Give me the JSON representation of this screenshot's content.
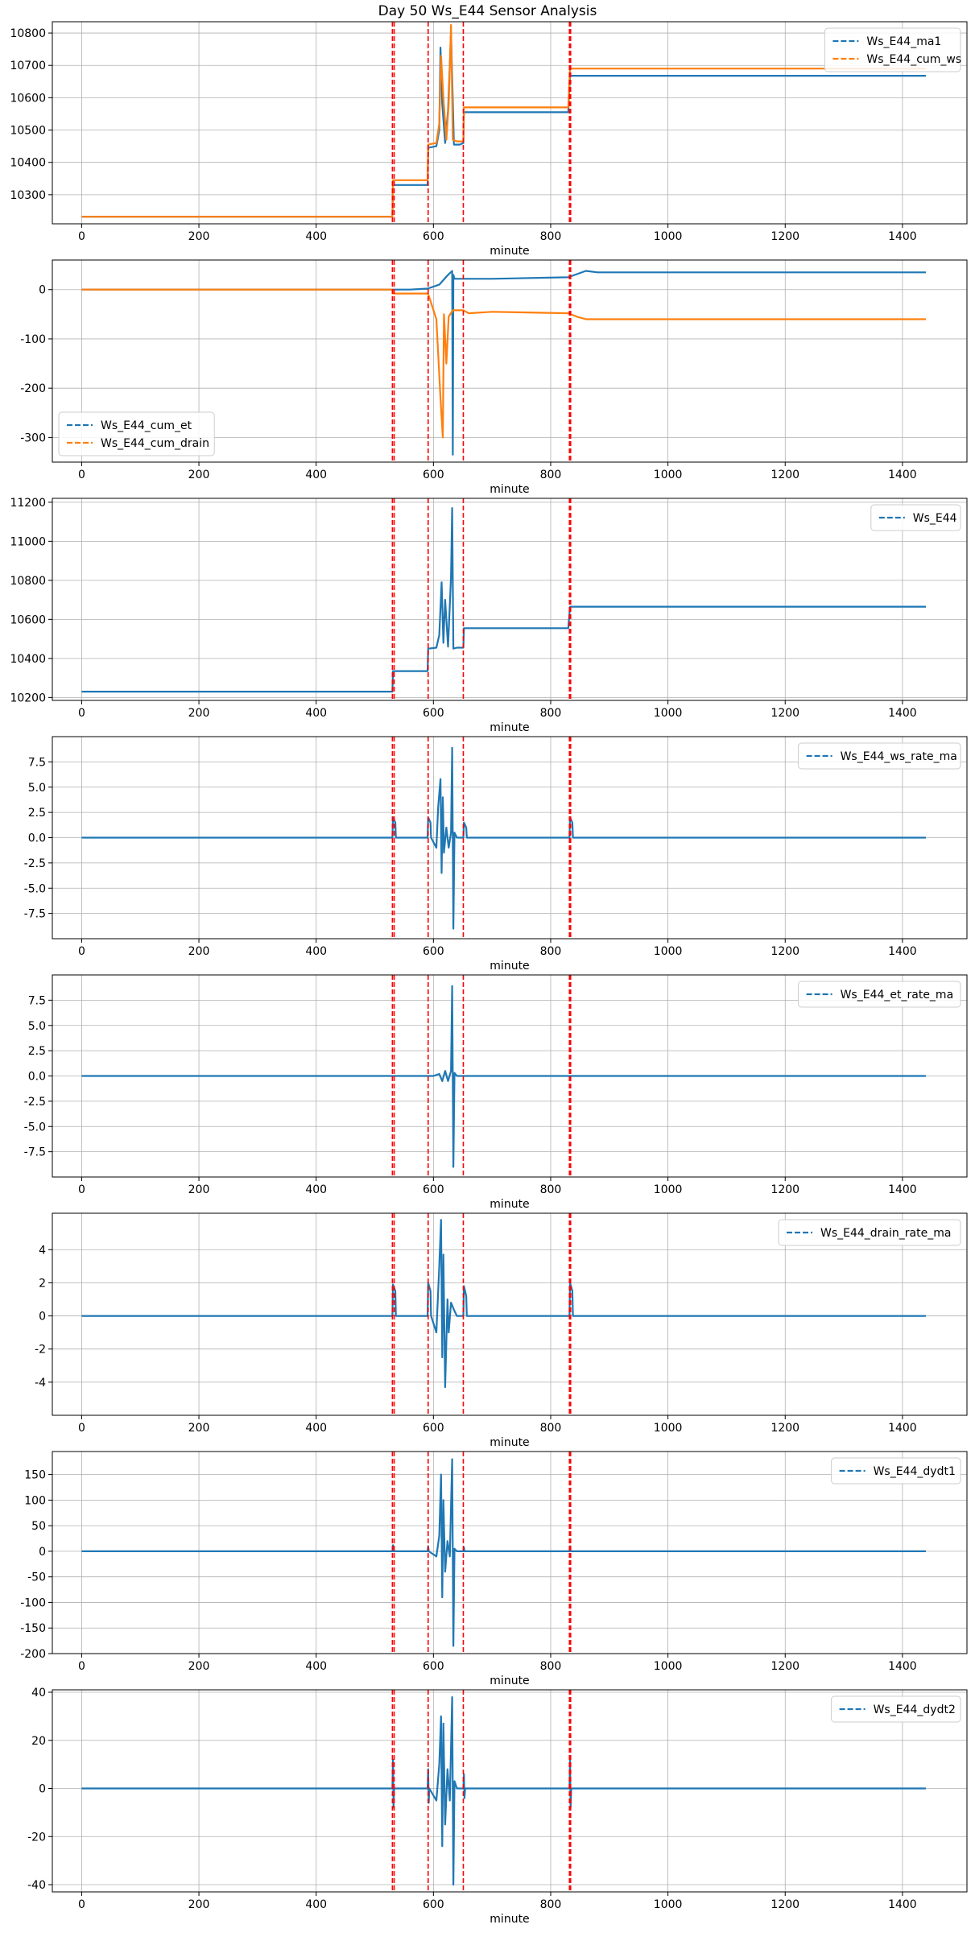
{
  "title": "Day 50 Ws_E44 Sensor Analysis",
  "colors": {
    "blue": "#1f77b4",
    "orange": "#ff7f0e",
    "event": "#ff0000",
    "grid": "#b0b0b0"
  },
  "event_lines_x": [
    530,
    533,
    591,
    651,
    832,
    834
  ],
  "chart_data": [
    {
      "type": "line",
      "xlabel": "minute",
      "xlim": [
        -50,
        1510
      ],
      "ylim": [
        10210,
        10835
      ],
      "yticks": [
        10300,
        10400,
        10500,
        10600,
        10700,
        10800
      ],
      "xticks": [
        0,
        200,
        400,
        600,
        800,
        1000,
        1200,
        1400
      ],
      "grid": true,
      "legend": "top-right",
      "series": [
        {
          "name": "Ws_E44_ma1",
          "color": "#1f77b4",
          "x": [
            0,
            530,
            531,
            590,
            591,
            605,
            610,
            612,
            615,
            620,
            625,
            630,
            635,
            645,
            651,
            652,
            830,
            833,
            1440
          ],
          "y": [
            10232,
            10232,
            10330,
            10330,
            10445,
            10450,
            10500,
            10755,
            10580,
            10460,
            10560,
            10800,
            10455,
            10455,
            10460,
            10555,
            10555,
            10668,
            10668
          ]
        },
        {
          "name": "Ws_E44_cum_ws",
          "color": "#ff7f0e",
          "x": [
            0,
            530,
            531,
            590,
            591,
            605,
            610,
            613,
            617,
            622,
            626,
            630,
            633,
            640,
            651,
            652,
            830,
            833,
            1440
          ],
          "y": [
            10232,
            10232,
            10345,
            10345,
            10455,
            10460,
            10520,
            10730,
            10600,
            10470,
            10580,
            10825,
            10470,
            10465,
            10465,
            10570,
            10570,
            10690,
            10690
          ]
        }
      ]
    },
    {
      "type": "line",
      "xlabel": "minute",
      "xlim": [
        -50,
        1510
      ],
      "ylim": [
        -350,
        60
      ],
      "yticks": [
        -300,
        -200,
        -100,
        0
      ],
      "xticks": [
        0,
        200,
        400,
        600,
        800,
        1000,
        1200,
        1400
      ],
      "grid": true,
      "legend": "bottom-left",
      "series": [
        {
          "name": "Ws_E44_cum_et",
          "color": "#1f77b4",
          "x": [
            0,
            530,
            560,
            590,
            610,
            625,
            632,
            633,
            634,
            636,
            640,
            651,
            700,
            830,
            860,
            880,
            1440
          ],
          "y": [
            0,
            0,
            0,
            2,
            10,
            30,
            38,
            -335,
            30,
            22,
            22,
            22,
            22,
            25,
            38,
            35,
            35
          ]
        },
        {
          "name": "Ws_E44_cum_drain",
          "color": "#ff7f0e",
          "x": [
            0,
            530,
            531,
            590,
            592,
            605,
            612,
            616,
            618,
            622,
            626,
            633,
            640,
            651,
            660,
            700,
            830,
            845,
            860,
            1440
          ],
          "y": [
            0,
            0,
            -8,
            -8,
            -12,
            -60,
            -220,
            -300,
            -50,
            -150,
            -55,
            -42,
            -42,
            -42,
            -48,
            -45,
            -48,
            -55,
            -60,
            -60
          ]
        }
      ]
    },
    {
      "type": "line",
      "xlabel": "minute",
      "xlim": [
        -50,
        1510
      ],
      "ylim": [
        10185,
        11220
      ],
      "yticks": [
        10200,
        10400,
        10600,
        10800,
        11000,
        11200
      ],
      "xticks": [
        0,
        200,
        400,
        600,
        800,
        1000,
        1200,
        1400
      ],
      "grid": true,
      "legend": "top-right",
      "series": [
        {
          "name": "Ws_E44",
          "color": "#1f77b4",
          "x": [
            0,
            530,
            531,
            590,
            591,
            605,
            610,
            614,
            617,
            620,
            625,
            630,
            632,
            634,
            640,
            651,
            652,
            830,
            833,
            1440
          ],
          "y": [
            10230,
            10230,
            10335,
            10335,
            10450,
            10455,
            10520,
            10790,
            10480,
            10700,
            10460,
            10820,
            11170,
            10450,
            10455,
            10455,
            10555,
            10555,
            10665,
            10665
          ]
        }
      ]
    },
    {
      "type": "line",
      "xlabel": "minute",
      "xlim": [
        -50,
        1510
      ],
      "ylim": [
        -10,
        10
      ],
      "yticks": [
        -7.5,
        -5.0,
        -2.5,
        0.0,
        2.5,
        5.0,
        7.5
      ],
      "xticks": [
        0,
        200,
        400,
        600,
        800,
        1000,
        1200,
        1400
      ],
      "grid": true,
      "legend": "top-right",
      "series": [
        {
          "name": "Ws_E44_ws_rate_ma",
          "color": "#1f77b4",
          "x": [
            0,
            530,
            531,
            535,
            536,
            590,
            591,
            595,
            596,
            605,
            608,
            612,
            614,
            616,
            618,
            622,
            626,
            630,
            632,
            634,
            636,
            640,
            651,
            652,
            656,
            657,
            832,
            833,
            837,
            838,
            1440
          ],
          "y": [
            0,
            0,
            2.0,
            1.5,
            0,
            0,
            2.0,
            1.5,
            0,
            -1.0,
            3.0,
            5.8,
            -3.5,
            4.0,
            -1.5,
            1.0,
            -1.0,
            0.5,
            8.9,
            -9.0,
            0.5,
            0,
            0,
            1.5,
            1.0,
            0,
            0,
            2.0,
            1.5,
            0,
            0
          ]
        }
      ]
    },
    {
      "type": "line",
      "xlabel": "minute",
      "xlim": [
        -50,
        1510
      ],
      "ylim": [
        -10,
        10
      ],
      "yticks": [
        -7.5,
        -5.0,
        -2.5,
        0.0,
        2.5,
        5.0,
        7.5
      ],
      "xticks": [
        0,
        200,
        400,
        600,
        800,
        1000,
        1200,
        1400
      ],
      "grid": true,
      "legend": "top-right",
      "series": [
        {
          "name": "Ws_E44_et_rate_ma",
          "color": "#1f77b4",
          "x": [
            0,
            590,
            600,
            610,
            615,
            620,
            625,
            630,
            632,
            634,
            636,
            640,
            700,
            880,
            1440
          ],
          "y": [
            0,
            0,
            0,
            0.2,
            -0.5,
            0.5,
            -0.5,
            0.5,
            8.9,
            -9.0,
            0.3,
            0,
            0,
            0,
            0
          ]
        }
      ]
    },
    {
      "type": "line",
      "xlabel": "minute",
      "xlim": [
        -50,
        1510
      ],
      "ylim": [
        -6,
        6.2
      ],
      "yticks": [
        -4,
        -2,
        0,
        2,
        4
      ],
      "xticks": [
        0,
        200,
        400,
        600,
        800,
        1000,
        1200,
        1400
      ],
      "grid": true,
      "legend": "top-right",
      "series": [
        {
          "name": "Ws_E44_drain_rate_ma",
          "color": "#1f77b4",
          "x": [
            0,
            530,
            531,
            535,
            536,
            590,
            591,
            595,
            596,
            605,
            610,
            613,
            615,
            617,
            620,
            624,
            626,
            630,
            636,
            640,
            651,
            652,
            656,
            657,
            832,
            833,
            837,
            838,
            1440
          ],
          "y": [
            0,
            0,
            1.9,
            1.5,
            0,
            0,
            2.0,
            1.5,
            0,
            -1.0,
            3.0,
            5.8,
            -2.5,
            3.7,
            -4.3,
            1.0,
            -1.0,
            0.8,
            0.3,
            0,
            0,
            1.8,
            1.2,
            0,
            0,
            2.0,
            1.5,
            0,
            0
          ]
        }
      ]
    },
    {
      "type": "line",
      "xlabel": "minute",
      "xlim": [
        -50,
        1510
      ],
      "ylim": [
        -200,
        195
      ],
      "yticks": [
        -200,
        -150,
        -100,
        -50,
        0,
        50,
        100,
        150
      ],
      "xticks": [
        0,
        200,
        400,
        600,
        800,
        1000,
        1200,
        1400
      ],
      "grid": true,
      "legend": "top-right",
      "series": [
        {
          "name": "Ws_E44_dydt1",
          "color": "#1f77b4",
          "x": [
            0,
            530,
            531,
            532,
            590,
            591,
            592,
            605,
            610,
            613,
            615,
            617,
            620,
            624,
            628,
            632,
            634,
            636,
            640,
            651,
            652,
            653,
            832,
            833,
            834,
            1440
          ],
          "y": [
            0,
            0,
            12,
            0,
            0,
            10,
            0,
            -10,
            30,
            150,
            -90,
            100,
            -40,
            20,
            -10,
            180,
            -185,
            5,
            0,
            0,
            8,
            0,
            0,
            10,
            0,
            0
          ]
        }
      ]
    },
    {
      "type": "line",
      "xlabel": "minute",
      "xlim": [
        -50,
        1510
      ],
      "ylim": [
        -43,
        41
      ],
      "yticks": [
        -40,
        -20,
        0,
        20,
        40
      ],
      "xticks": [
        0,
        200,
        400,
        600,
        800,
        1000,
        1200,
        1400
      ],
      "grid": true,
      "legend": "top-right",
      "series": [
        {
          "name": "Ws_E44_dydt2",
          "color": "#1f77b4",
          "x": [
            0,
            530,
            531,
            532,
            533,
            590,
            591,
            592,
            593,
            605,
            610,
            613,
            615,
            617,
            620,
            624,
            628,
            632,
            634,
            636,
            640,
            651,
            652,
            653,
            654,
            832,
            833,
            834,
            835,
            1440
          ],
          "y": [
            0,
            0,
            12,
            -8,
            0,
            0,
            8,
            -6,
            0,
            -5,
            10,
            30,
            -24,
            27,
            -15,
            8,
            -5,
            38,
            -40,
            3,
            0,
            0,
            6,
            -4,
            0,
            0,
            12,
            -8,
            0,
            0
          ]
        }
      ]
    }
  ]
}
